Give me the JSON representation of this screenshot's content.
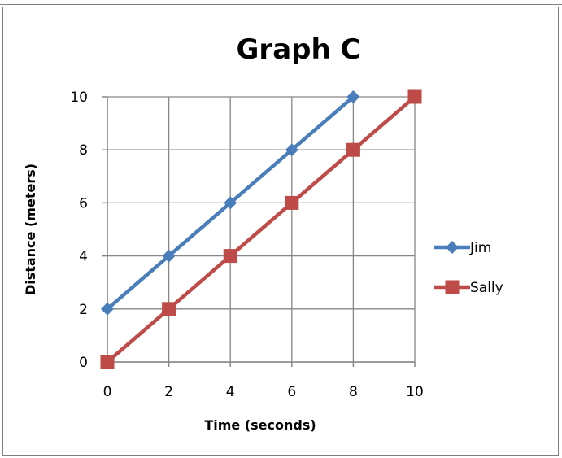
{
  "chart_data": {
    "type": "line",
    "title": "Graph C",
    "xlabel": "Time (seconds)",
    "ylabel": "Distance (meters)",
    "xlim": [
      0,
      10
    ],
    "ylim": [
      0,
      10
    ],
    "x_ticks": [
      0,
      2,
      4,
      6,
      8,
      10
    ],
    "y_ticks": [
      0,
      2,
      4,
      6,
      8,
      10
    ],
    "grid": true,
    "legend_position": "right",
    "series": [
      {
        "name": "Jim",
        "color": "#4a7ebb",
        "marker": "diamond",
        "x": [
          0,
          2,
          4,
          6,
          8
        ],
        "y": [
          2,
          4,
          6,
          8,
          10
        ]
      },
      {
        "name": "Sally",
        "color": "#be4b48",
        "marker": "square",
        "x": [
          0,
          2,
          4,
          6,
          8,
          10
        ],
        "y": [
          0,
          2,
          4,
          6,
          8,
          10
        ]
      }
    ]
  }
}
